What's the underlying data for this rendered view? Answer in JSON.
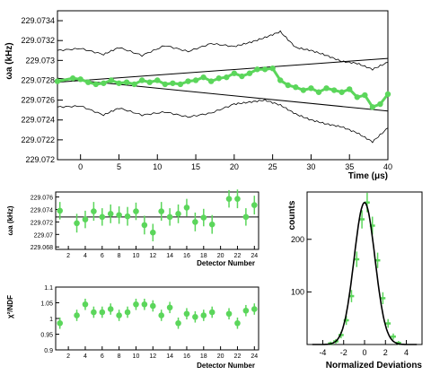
{
  "colors": {
    "data_green": "#5bd65b",
    "line_black": "#000000"
  },
  "chart_data": [
    {
      "id": "omega_vs_time",
      "type": "line",
      "title": "",
      "xlabel": "Time (μs)",
      "ylabel": "ωa (kHz)",
      "xlim": [
        -3,
        40
      ],
      "ylim": [
        229.072,
        229.0735
      ],
      "xticks": [
        "0",
        "5",
        "10",
        "15",
        "20",
        "25",
        "30",
        "35",
        "40"
      ],
      "yticks": [
        "229.072",
        "229.0722",
        "229.0724",
        "229.0726",
        "229.0728",
        "229.073",
        "229.0732",
        "229.0734"
      ],
      "fit_lines": {
        "upper": {
          "x": [
            -3,
            40
          ],
          "y": [
            229.07278,
            229.07302
          ]
        },
        "lower": {
          "x": [
            -3,
            40
          ],
          "y": [
            229.07282,
            229.07249
          ]
        }
      },
      "series": [
        {
          "kind": "points",
          "x": [
            -3,
            -1,
            0,
            1,
            2,
            3,
            4,
            5,
            6,
            7,
            8,
            9,
            10,
            11,
            12,
            13,
            14,
            15,
            16,
            17,
            18,
            19,
            20,
            21,
            22,
            23,
            24,
            25,
            26,
            27,
            28,
            29,
            30,
            31,
            32,
            33,
            34,
            35,
            36,
            37,
            38,
            39,
            40
          ],
          "y": [
            229.07279,
            229.07282,
            229.07281,
            229.07278,
            229.07276,
            229.07277,
            229.0728,
            229.07277,
            229.07278,
            229.07276,
            229.0728,
            229.07278,
            229.0728,
            229.07276,
            229.07277,
            229.07276,
            229.07279,
            229.0728,
            229.07283,
            229.07279,
            229.07282,
            229.07283,
            229.07287,
            229.07284,
            229.07287,
            229.07291,
            229.07291,
            229.07292,
            229.0728,
            229.07275,
            229.07273,
            229.0727,
            229.07272,
            229.07268,
            229.07272,
            229.0727,
            229.07268,
            229.07271,
            229.07263,
            229.07265,
            229.07253,
            229.07256,
            229.07266
          ]
        },
        {
          "kind": "band-upper",
          "x": [
            -3,
            0,
            3,
            5,
            8,
            11,
            14,
            17,
            20,
            22,
            24,
            26,
            28,
            30,
            32,
            34,
            36,
            38,
            40
          ],
          "y": [
            229.0731,
            229.07312,
            229.07306,
            229.07313,
            229.07305,
            229.07315,
            229.07309,
            229.07317,
            229.07314,
            229.07318,
            229.07323,
            229.07329,
            229.07313,
            229.0731,
            229.07305,
            229.07299,
            229.07297,
            229.07291,
            229.07298
          ]
        },
        {
          "kind": "band-lower",
          "x": [
            -3,
            0,
            3,
            5,
            8,
            11,
            14,
            17,
            20,
            22,
            24,
            26,
            28,
            30,
            32,
            34,
            36,
            38,
            40
          ],
          "y": [
            229.07253,
            229.07254,
            229.07245,
            229.07252,
            229.07245,
            229.07248,
            229.07243,
            229.07247,
            229.07256,
            229.07258,
            229.0726,
            229.07255,
            229.07246,
            229.0724,
            229.07236,
            229.07233,
            229.07227,
            229.07218,
            229.07232
          ]
        }
      ]
    },
    {
      "id": "omega_vs_detector",
      "type": "scatter",
      "title": "",
      "xlabel": "Detector Number",
      "ylabel": "ωa (kHz)",
      "xlim": [
        0.5,
        24.5
      ],
      "ylim": [
        229.0676,
        229.0768
      ],
      "xticks": [
        "2",
        "4",
        "6",
        "8",
        "10",
        "12",
        "14",
        "16",
        "18",
        "20",
        "22",
        "24"
      ],
      "yticks": [
        "229.068",
        "229.07",
        "229.072",
        "229.074",
        "229.076"
      ],
      "reference_line": 229.0728,
      "points": {
        "x": [
          1,
          3,
          4,
          5,
          6,
          7,
          8,
          9,
          10,
          11,
          12,
          13,
          14,
          15,
          16,
          17,
          18,
          19,
          21,
          22,
          23,
          24
        ],
        "y": [
          229.0738,
          229.0718,
          229.0724,
          229.0737,
          229.0728,
          229.0733,
          229.0731,
          229.0729,
          229.0737,
          229.0715,
          229.0703,
          229.0737,
          229.0728,
          229.0733,
          229.0743,
          229.072,
          229.0727,
          229.0716,
          229.0757,
          229.0757,
          229.0728,
          229.0747
        ],
        "err": [
          0.0014,
          0.0015,
          0.0014,
          0.0015,
          0.0014,
          0.0015,
          0.0014,
          0.0015,
          0.0014,
          0.0015,
          0.0014,
          0.0015,
          0.0014,
          0.0015,
          0.0014,
          0.0015,
          0.0014,
          0.0015,
          0.0014,
          0.0015,
          0.0014,
          0.0015
        ]
      }
    },
    {
      "id": "chi2_vs_detector",
      "type": "scatter",
      "title": "",
      "xlabel": "Detector Number",
      "ylabel": "χ²/NDF",
      "xlim": [
        0.5,
        24.5
      ],
      "ylim": [
        0.9,
        1.1
      ],
      "xticks": [
        "2",
        "4",
        "6",
        "8",
        "10",
        "12",
        "14",
        "16",
        "18",
        "20",
        "22",
        "24"
      ],
      "yticks": [
        "0.9",
        "0.95",
        "1",
        "1.05",
        "1.1"
      ],
      "points": {
        "x": [
          1,
          3,
          4,
          5,
          6,
          7,
          8,
          9,
          10,
          11,
          12,
          13,
          14,
          15,
          16,
          17,
          18,
          19,
          21,
          22,
          23,
          24
        ],
        "y": [
          0.985,
          1.01,
          1.045,
          1.02,
          1.02,
          1.03,
          1.01,
          1.02,
          1.045,
          1.045,
          1.04,
          1.01,
          1.035,
          0.985,
          1.015,
          1.005,
          1.01,
          1.02,
          1.015,
          0.985,
          1.025,
          1.03
        ],
        "err": [
          0.018,
          0.018,
          0.018,
          0.018,
          0.018,
          0.018,
          0.018,
          0.018,
          0.018,
          0.018,
          0.018,
          0.018,
          0.018,
          0.018,
          0.018,
          0.018,
          0.018,
          0.018,
          0.018,
          0.018,
          0.018,
          0.018
        ]
      }
    },
    {
      "id": "normalized_deviations",
      "type": "bar",
      "title": "",
      "xlabel": "Normalized Deviations",
      "ylabel": "counts",
      "xlim": [
        -5.5,
        5.5
      ],
      "ylim": [
        0,
        290
      ],
      "xticks": [
        "-4",
        "-2",
        "0",
        "2",
        "4"
      ],
      "yticks": [
        "100",
        "200"
      ],
      "histogram": {
        "bin_centers": [
          -3.25,
          -2.75,
          -2.25,
          -1.75,
          -1.25,
          -0.75,
          -0.25,
          0.25,
          0.75,
          1.25,
          1.75,
          2.25,
          2.75,
          3.25
        ],
        "counts": [
          2,
          6,
          18,
          46,
          92,
          162,
          238,
          270,
          226,
          160,
          88,
          40,
          15,
          3
        ]
      },
      "gaussian_fit": {
        "amplitude": 270,
        "mean": 0,
        "sigma": 1
      }
    }
  ]
}
